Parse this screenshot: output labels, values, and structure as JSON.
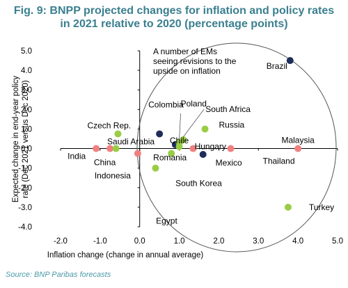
{
  "title_line1": "Fig. 9: BNPP projected changes for inflation and policy rates",
  "title_line2": "in 2021 relative to 2020 (percentage points)",
  "source": "Source: BNP Paribas forecasts",
  "colors": {
    "title": "#3a7f8f",
    "green": "#9acd45",
    "red": "#f08080",
    "navy": "#1f2d5a",
    "source": "#4a9aa8"
  },
  "chart_data": {
    "type": "scatter",
    "xlabel": "Inflation change (change in annual average)",
    "ylabel_line1": "Expected change in end-year policy",
    "ylabel_line2": "rate (Dec 2021 versus Dec 2020)",
    "xlim": [
      -2.0,
      5.0
    ],
    "ylim": [
      -4.0,
      5.0
    ],
    "x_ticks": [
      "-2.0",
      "-1.0",
      "0.0",
      "1.0",
      "2.0",
      "3.0",
      "4.0",
      "5.0"
    ],
    "y_ticks": [
      "5.0",
      "4.0",
      "3.0",
      "2.0",
      "1.0",
      "0.0",
      "-1.0",
      "-2.0",
      "-3.0",
      "-4.0"
    ],
    "annotation": [
      "A number of EMs",
      "seeing revisions to the",
      "upside on inflation"
    ],
    "points": [
      {
        "name": "Brazil",
        "x": 3.8,
        "y": 4.5,
        "color": "navy"
      },
      {
        "name": "Czech Rep.",
        "x": -0.55,
        "y": 0.75,
        "color": "green"
      },
      {
        "name": "Colombia",
        "x": 0.5,
        "y": 0.75,
        "color": "navy"
      },
      {
        "name": "Chile",
        "x": 0.9,
        "y": 0.2,
        "color": "navy"
      },
      {
        "name": "Poland",
        "x": 1.0,
        "y": 0.3,
        "color": "green"
      },
      {
        "name": "South Africa",
        "x": 1.1,
        "y": 0.45,
        "color": "green"
      },
      {
        "name": "Russia",
        "x": 1.65,
        "y": 1.0,
        "color": "green"
      },
      {
        "name": "Hungary",
        "x": 1.0,
        "y": 0.1,
        "color": "green"
      },
      {
        "name": "Malaysia",
        "x": 4.0,
        "y": 0.0,
        "color": "red"
      },
      {
        "name": "Thailand",
        "x": 2.3,
        "y": 0.0,
        "color": "red"
      },
      {
        "name": "Mexico",
        "x": 1.6,
        "y": -0.3,
        "color": "navy"
      },
      {
        "name": "India",
        "x": -1.1,
        "y": 0.0,
        "color": "red"
      },
      {
        "name": "Saudi Arabia",
        "x": -0.75,
        "y": 0.0,
        "color": "red"
      },
      {
        "name": "China",
        "x": -0.6,
        "y": 0.0,
        "color": "green"
      },
      {
        "name": "Indonesia",
        "x": -0.05,
        "y": -0.25,
        "color": "red"
      },
      {
        "name": "Romania",
        "x": 0.8,
        "y": -0.25,
        "color": "green"
      },
      {
        "name": "South Korea",
        "x": 1.35,
        "y": 0.0,
        "color": "red"
      },
      {
        "name": "Egypt",
        "x": 0.4,
        "y": -1.0,
        "color": "green"
      },
      {
        "name": "Turkey",
        "x": 3.75,
        "y": -3.0,
        "color": "green"
      }
    ]
  }
}
